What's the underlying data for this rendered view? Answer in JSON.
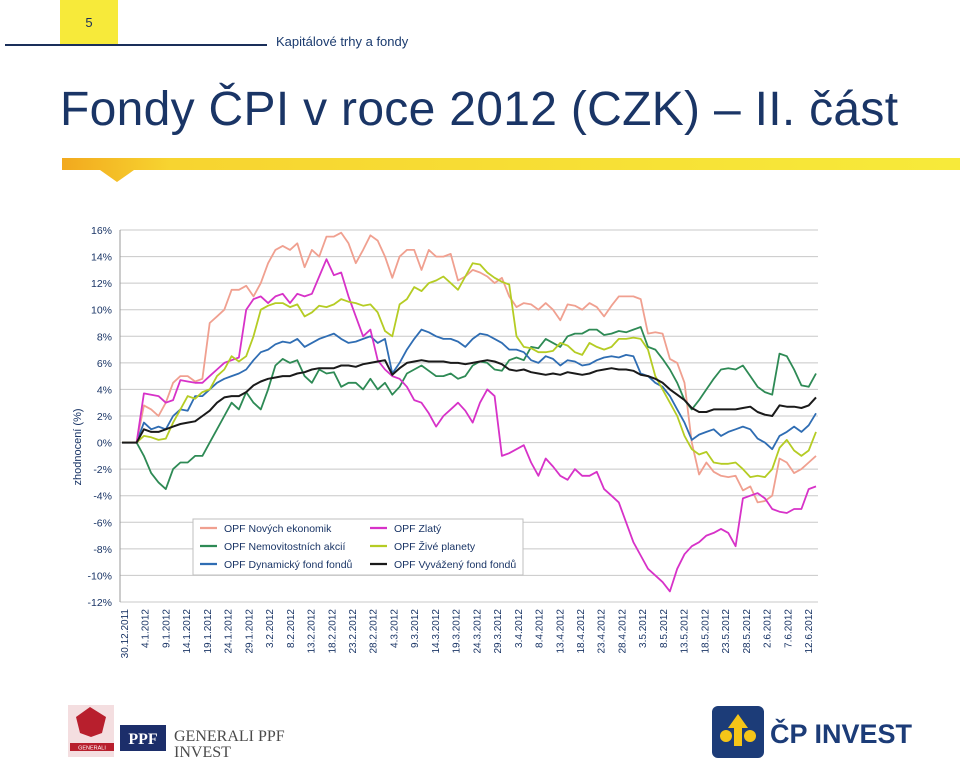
{
  "header": {
    "page_number": "5",
    "section": "Kapitálové trhy a fondy",
    "title": "Fondy ČPI v roce 2012 (CZK) – II. část"
  },
  "logos": {
    "left": {
      "generali_text": "GENERALI",
      "ppf_text": "PPF",
      "line1": "GENERALI PPF",
      "line2": "INVEST"
    },
    "right": {
      "text": "ČP INVEST"
    }
  },
  "colors": {
    "navy": "#1a3566",
    "yellow": "#f7ea3a",
    "orange": "#f2a91e"
  },
  "chart_data": {
    "type": "line",
    "ylabel": "zhodnocení (%)",
    "ylim": [
      -12,
      16
    ],
    "yticks": [
      -12,
      -10,
      -8,
      -6,
      -4,
      -2,
      0,
      2,
      4,
      6,
      8,
      10,
      12,
      14,
      16
    ],
    "ytick_labels": [
      "-12%",
      "-10%",
      "-8%",
      "-6%",
      "-4%",
      "-2%",
      "0%",
      "2%",
      "4%",
      "6%",
      "8%",
      "10%",
      "12%",
      "14%",
      "16%"
    ],
    "xticks": [
      "30.12.2011",
      "4.1.2012",
      "9.1.2012",
      "14.1.2012",
      "19.1.2012",
      "24.1.2012",
      "29.1.2012",
      "3.2.2012",
      "8.2.2012",
      "13.2.2012",
      "18.2.2012",
      "23.2.2012",
      "28.2.2012",
      "4.3.2012",
      "9.3.2012",
      "14.3.2012",
      "19.3.2012",
      "24.3.2012",
      "29.3.2012",
      "3.4.2012",
      "8.4.2012",
      "13.4.2012",
      "18.4.2012",
      "23.4.2012",
      "28.4.2012",
      "3.5.2012",
      "8.5.2012",
      "13.5.2012",
      "18.5.2012",
      "23.5.2012",
      "28.5.2012",
      "2.6.2012",
      "7.6.2012",
      "12.6.2012"
    ],
    "legend": "bottom-left inside",
    "grid": "horizontal",
    "series": [
      {
        "name": "OPF Nových ekonomik",
        "color": "#f0a090",
        "values": [
          0,
          0,
          0,
          2.8,
          2.5,
          2,
          3,
          4.5,
          5,
          5,
          4.6,
          4.8,
          9,
          9.5,
          10,
          11.5,
          11.5,
          11.8,
          11,
          12,
          13.5,
          14.5,
          14.8,
          14.5,
          15,
          13.2,
          14.5,
          14,
          15.5,
          15.5,
          15.8,
          15,
          13.5,
          14.5,
          15.6,
          15.2,
          14,
          12.4,
          14,
          14.5,
          14.5,
          13,
          14.5,
          14,
          14,
          14.2,
          12.2,
          12.5,
          13,
          12.8,
          12.5,
          12,
          12.4,
          11,
          10.2,
          10.5,
          10.4,
          10,
          10.5,
          10,
          9.2,
          10.4,
          10.3,
          10,
          10.5,
          10.2,
          9.5,
          10.3,
          11,
          11,
          11,
          10.8,
          8.2,
          8.3,
          8.2,
          6.3,
          6,
          4.5,
          0,
          -2.4,
          -1.5,
          -2.2,
          -2.5,
          -2.6,
          -2.5,
          -3.6,
          -3.3,
          -4.5,
          -4.4,
          -4,
          -1.2,
          -1.5,
          -2.3,
          -2,
          -1.5,
          -1
        ]
      },
      {
        "name": "OPF Nemovitostních akcií",
        "color": "#2e8a55",
        "values": [
          0,
          0,
          0,
          -1,
          -2.3,
          -3,
          -3.5,
          -2,
          -1.5,
          -1.5,
          -1,
          -1,
          0,
          1,
          2,
          3,
          2.5,
          3.8,
          3,
          2.5,
          4,
          5.8,
          6.3,
          6,
          6.2,
          5,
          4.5,
          5.5,
          5.2,
          5.3,
          4.2,
          4.5,
          4.5,
          4,
          4.8,
          4,
          4.5,
          3.6,
          4.2,
          5.2,
          5.5,
          5.8,
          5.4,
          5,
          5,
          5.2,
          4.8,
          5,
          5.8,
          6.1,
          6,
          5.5,
          5.4,
          6.2,
          6.4,
          6.2,
          7.2,
          7.1,
          7.8,
          7.5,
          7.2,
          8,
          8.2,
          8.2,
          8.5,
          8.5,
          8.1,
          8.2,
          8.4,
          8.3,
          8.5,
          8.7,
          7.2,
          7,
          6.3,
          5.5,
          4.5,
          3.2,
          2.5,
          3.2,
          4,
          4.8,
          5.5,
          5.6,
          5.5,
          5.8,
          5,
          4.2,
          3.8,
          3.6,
          6.7,
          6.5,
          5.5,
          4.3,
          4.2,
          5.2
        ]
      },
      {
        "name": "OPF Dynamický fond fondů",
        "color": "#2f6db3",
        "values": [
          0,
          0,
          0,
          1.5,
          1,
          1.2,
          1,
          2,
          2.5,
          2.4,
          3.5,
          3.5,
          4,
          4.5,
          4.8,
          5,
          5.2,
          5.5,
          6.2,
          6.8,
          7,
          7.4,
          7.6,
          7.5,
          7.8,
          7.2,
          7.5,
          7.8,
          8,
          8.2,
          7.8,
          7.5,
          7.6,
          7.8,
          8,
          7.5,
          7.8,
          5.2,
          6,
          7,
          7.8,
          8.5,
          8.3,
          8,
          7.8,
          7.8,
          7.6,
          7.2,
          7.8,
          8.2,
          8.1,
          7.8,
          7.5,
          7,
          7,
          6.8,
          6.2,
          6,
          6.5,
          6.3,
          5.8,
          6.2,
          6.1,
          5.8,
          5.9,
          6.2,
          6.4,
          6.5,
          6.4,
          6.6,
          6.5,
          5.2,
          5,
          4.5,
          4.2,
          3.5,
          2.5,
          1.5,
          0.2,
          0.6,
          0.8,
          1,
          0.5,
          0.8,
          1,
          1.2,
          1,
          0.3,
          0,
          -0.5,
          0.5,
          0.8,
          1.2,
          0.8,
          1.3,
          2.2
        ]
      },
      {
        "name": "OPF Zlatý",
        "color": "#d732c8",
        "values": [
          0,
          0,
          0,
          3.7,
          3.6,
          3.5,
          3,
          3.2,
          4.7,
          4.6,
          4.5,
          4.5,
          5,
          5.5,
          6,
          6.2,
          6.4,
          10,
          10.8,
          11,
          10.5,
          11,
          11.2,
          10.5,
          11.2,
          11,
          11.2,
          12.5,
          13.8,
          12.6,
          12.8,
          11,
          9.5,
          8,
          8.5,
          6.2,
          5.5,
          5,
          4.8,
          4.2,
          3.2,
          3,
          2.2,
          1.2,
          2,
          2.5,
          3,
          2.4,
          1.5,
          3,
          4,
          3.5,
          -1,
          -0.8,
          -0.5,
          -0.2,
          -1.5,
          -2.5,
          -1.2,
          -1.8,
          -2.5,
          -2.8,
          -2,
          -2.5,
          -2.5,
          -2.2,
          -3.5,
          -4,
          -4.5,
          -6,
          -7.5,
          -8.5,
          -9.5,
          -10,
          -10.5,
          -11.2,
          -9.5,
          -8.4,
          -7.8,
          -7.5,
          -7,
          -6.8,
          -6.5,
          -6.8,
          -7.8,
          -4.2,
          -4,
          -3.8,
          -4.2,
          -5,
          -5.2,
          -5.3,
          -5,
          -5,
          -3.5,
          -3.3
        ]
      },
      {
        "name": "OPF Živé planety",
        "color": "#b5cc24",
        "values": [
          0,
          0,
          0,
          0.5,
          0.4,
          0.2,
          0.3,
          1.5,
          2.5,
          3.5,
          3.3,
          3.8,
          4,
          5,
          5.5,
          6.5,
          6.1,
          6.5,
          8,
          10,
          10.3,
          10.5,
          10.5,
          10.2,
          10.4,
          9.5,
          9.8,
          10.3,
          10.2,
          10.4,
          10.8,
          10.6,
          10.5,
          10.3,
          10.4,
          9.8,
          8.4,
          8,
          10.4,
          10.8,
          11.7,
          11.4,
          12,
          12.2,
          12.5,
          12,
          11.5,
          12.5,
          13.5,
          13.4,
          12.8,
          12.4,
          12.1,
          11.9,
          8,
          7.2,
          7.1,
          6.8,
          6.8,
          6.9,
          7.5,
          7.3,
          6.8,
          6.6,
          7.5,
          7.2,
          7,
          7.2,
          7.8,
          7.8,
          7.9,
          7.8,
          7,
          5,
          4,
          3,
          2,
          0.5,
          -0.5,
          -0.9,
          -0.7,
          -1.5,
          -1.6,
          -1.6,
          -1.5,
          -2,
          -2.6,
          -2.5,
          -2.6,
          -2,
          -0.4,
          0.2,
          -0.6,
          -1,
          -0.6,
          0.8
        ]
      },
      {
        "name": "OPF Vyvážený fond fondů",
        "color": "#1a1a1a",
        "values": [
          0,
          0,
          0,
          1,
          0.8,
          0.8,
          1,
          1.2,
          1.4,
          1.5,
          1.6,
          2,
          2.4,
          3,
          3.4,
          3.5,
          3.5,
          3.8,
          4.3,
          4.6,
          4.8,
          4.9,
          5,
          5,
          5.2,
          5.3,
          5.5,
          5.6,
          5.6,
          5.6,
          5.8,
          5.8,
          5.7,
          5.9,
          6,
          6.1,
          6.2,
          5.1,
          5.6,
          6,
          6.1,
          6.2,
          6.1,
          6.1,
          6.1,
          6,
          6,
          5.9,
          6,
          6.1,
          6.2,
          6.1,
          5.9,
          5.5,
          5.4,
          5.5,
          5.3,
          5.2,
          5.1,
          5.2,
          5.1,
          5.3,
          5.2,
          5.1,
          5.2,
          5.4,
          5.5,
          5.6,
          5.5,
          5.5,
          5.4,
          5.1,
          5,
          4.8,
          4.5,
          4,
          3.6,
          3.2,
          2.6,
          2.3,
          2.3,
          2.5,
          2.5,
          2.5,
          2.5,
          2.6,
          2.7,
          2.3,
          2.1,
          2,
          2.8,
          2.7,
          2.7,
          2.6,
          2.8,
          3.4
        ]
      }
    ]
  }
}
